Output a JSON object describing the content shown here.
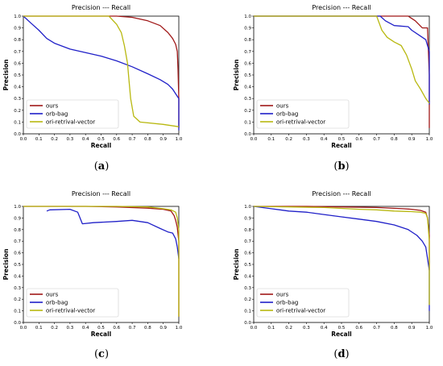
{
  "chart_data": [
    {
      "type": "line",
      "panel": "a",
      "title": "Precision --- Recall",
      "xlabel": "Recall",
      "ylabel": "Precision",
      "xlim": [
        0,
        1.0
      ],
      "ylim": [
        0,
        1.0
      ],
      "xticks": [
        "0.0",
        "0.1",
        "0.2",
        "0.3",
        "0.4",
        "0.5",
        "0.6",
        "0.7",
        "0.8",
        "0.9",
        "1.0"
      ],
      "yticks": [
        "0.0",
        "0.1",
        "0.2",
        "0.3",
        "0.4",
        "0.5",
        "0.6",
        "0.7",
        "0.8",
        "0.9",
        "1.0"
      ],
      "legend_position": "lower-left",
      "series": [
        {
          "name": "ours",
          "color": "#a01818",
          "points": [
            [
              0,
              1.0
            ],
            [
              0.5,
              1.0
            ],
            [
              0.6,
              1.0
            ],
            [
              0.7,
              0.99
            ],
            [
              0.8,
              0.96
            ],
            [
              0.88,
              0.92
            ],
            [
              0.93,
              0.86
            ],
            [
              0.96,
              0.81
            ],
            [
              0.98,
              0.76
            ],
            [
              0.99,
              0.7
            ],
            [
              0.995,
              0.55
            ],
            [
              1.0,
              0.3
            ],
            [
              1.0,
              0.05
            ]
          ]
        },
        {
          "name": "orb-bag",
          "color": "#2020c8",
          "points": [
            [
              0.0,
              1.0
            ],
            [
              0.05,
              0.94
            ],
            [
              0.1,
              0.88
            ],
            [
              0.15,
              0.81
            ],
            [
              0.2,
              0.77
            ],
            [
              0.3,
              0.72
            ],
            [
              0.4,
              0.69
            ],
            [
              0.5,
              0.66
            ],
            [
              0.6,
              0.62
            ],
            [
              0.7,
              0.57
            ],
            [
              0.8,
              0.51
            ],
            [
              0.88,
              0.46
            ],
            [
              0.93,
              0.42
            ],
            [
              0.96,
              0.38
            ],
            [
              0.98,
              0.34
            ],
            [
              1.0,
              0.3
            ],
            [
              1.0,
              0.03
            ]
          ]
        },
        {
          "name": "ori-retrival-vector",
          "color": "#b8b810",
          "points": [
            [
              0,
              1.0
            ],
            [
              0.55,
              1.0
            ],
            [
              0.6,
              0.93
            ],
            [
              0.63,
              0.86
            ],
            [
              0.65,
              0.75
            ],
            [
              0.67,
              0.6
            ],
            [
              0.68,
              0.45
            ],
            [
              0.69,
              0.3
            ],
            [
              0.71,
              0.15
            ],
            [
              0.75,
              0.1
            ],
            [
              0.9,
              0.08
            ],
            [
              1.0,
              0.06
            ]
          ]
        }
      ]
    },
    {
      "type": "line",
      "panel": "b",
      "title": "Precision --- Recall",
      "xlabel": "Recall",
      "ylabel": "Precision",
      "xlim": [
        0,
        1.0
      ],
      "ylim": [
        0,
        1.0
      ],
      "xticks": [
        "0.0",
        "0.1",
        "0.2",
        "0.3",
        "0.4",
        "0.5",
        "0.6",
        "0.7",
        "0.8",
        "0.9",
        "1.0"
      ],
      "yticks": [
        "0.0",
        "0.1",
        "0.2",
        "0.3",
        "0.4",
        "0.5",
        "0.6",
        "0.7",
        "0.8",
        "0.9",
        "1.0"
      ],
      "legend_position": "lower-left",
      "series": [
        {
          "name": "ours",
          "color": "#a01818",
          "points": [
            [
              0,
              1.0
            ],
            [
              0.7,
              1.0
            ],
            [
              0.88,
              1.0
            ],
            [
              0.92,
              0.96
            ],
            [
              0.96,
              0.9
            ],
            [
              0.99,
              0.9
            ],
            [
              1.0,
              0.5
            ],
            [
              1.0,
              0.05
            ]
          ]
        },
        {
          "name": "orb-bag",
          "color": "#2020c8",
          "points": [
            [
              0,
              1.0
            ],
            [
              0.72,
              1.0
            ],
            [
              0.75,
              0.96
            ],
            [
              0.8,
              0.92
            ],
            [
              0.88,
              0.91
            ],
            [
              0.9,
              0.88
            ],
            [
              0.95,
              0.83
            ],
            [
              0.98,
              0.8
            ],
            [
              1.0,
              0.7
            ],
            [
              1.0,
              0.25
            ]
          ]
        },
        {
          "name": "ori-retrival-vector",
          "color": "#b8b810",
          "points": [
            [
              0,
              1.0
            ],
            [
              0.7,
              1.0
            ],
            [
              0.73,
              0.88
            ],
            [
              0.76,
              0.82
            ],
            [
              0.8,
              0.78
            ],
            [
              0.84,
              0.75
            ],
            [
              0.87,
              0.67
            ],
            [
              0.9,
              0.55
            ],
            [
              0.92,
              0.45
            ],
            [
              0.95,
              0.38
            ],
            [
              0.98,
              0.3
            ],
            [
              1.0,
              0.26
            ]
          ]
        }
      ]
    },
    {
      "type": "line",
      "panel": "c",
      "title": "Precision --- Recall",
      "xlabel": "Recall",
      "ylabel": "Precision",
      "xlim": [
        0,
        1.0
      ],
      "ylim": [
        0,
        1.0
      ],
      "xticks": [
        "0.0",
        "0.1",
        "0.2",
        "0.3",
        "0.4",
        "0.5",
        "0.6",
        "0.7",
        "0.8",
        "0.9",
        "1.0"
      ],
      "yticks": [
        "0.0",
        "0.1",
        "0.2",
        "0.3",
        "0.4",
        "0.5",
        "0.6",
        "0.7",
        "0.8",
        "0.9",
        "1.0"
      ],
      "legend_position": "lower-left",
      "series": [
        {
          "name": "ours",
          "color": "#a01818",
          "points": [
            [
              0,
              1.0
            ],
            [
              0.4,
              1.0
            ],
            [
              0.6,
              0.995
            ],
            [
              0.8,
              0.985
            ],
            [
              0.9,
              0.975
            ],
            [
              0.95,
              0.96
            ],
            [
              0.97,
              0.92
            ],
            [
              0.98,
              0.88
            ],
            [
              0.99,
              0.82
            ],
            [
              1.0,
              0.7
            ],
            [
              1.0,
              0.05
            ]
          ]
        },
        {
          "name": "orb-bag",
          "color": "#2020c8",
          "points": [
            [
              0.15,
              0.96
            ],
            [
              0.17,
              0.97
            ],
            [
              0.3,
              0.975
            ],
            [
              0.35,
              0.95
            ],
            [
              0.38,
              0.85
            ],
            [
              0.45,
              0.86
            ],
            [
              0.6,
              0.87
            ],
            [
              0.7,
              0.88
            ],
            [
              0.8,
              0.86
            ],
            [
              0.88,
              0.81
            ],
            [
              0.93,
              0.78
            ],
            [
              0.96,
              0.77
            ],
            [
              0.98,
              0.72
            ],
            [
              0.99,
              0.65
            ],
            [
              1.0,
              0.55
            ]
          ]
        },
        {
          "name": "ori-retrival-vector",
          "color": "#b8b810",
          "points": [
            [
              0,
              1.0
            ],
            [
              0.6,
              1.0
            ],
            [
              0.8,
              0.995
            ],
            [
              0.9,
              0.98
            ],
            [
              0.95,
              0.97
            ],
            [
              0.98,
              0.95
            ],
            [
              0.99,
              0.9
            ],
            [
              1.0,
              0.8
            ],
            [
              1.0,
              0.05
            ]
          ]
        }
      ]
    },
    {
      "type": "line",
      "panel": "d",
      "title": "Precision --- Recall",
      "xlabel": "Recall",
      "ylabel": "Precision",
      "xlim": [
        0,
        1.0
      ],
      "ylim": [
        0,
        1.0
      ],
      "xticks": [
        "0.0",
        "0.1",
        "0.2",
        "0.3",
        "0.4",
        "0.5",
        "0.6",
        "0.7",
        "0.8",
        "0.9",
        "1.0"
      ],
      "yticks": [
        "0.0",
        "0.1",
        "0.2",
        "0.3",
        "0.4",
        "0.5",
        "0.6",
        "0.7",
        "0.8",
        "0.9",
        "1.0"
      ],
      "legend_position": "lower-left",
      "series": [
        {
          "name": "ours",
          "color": "#a01818",
          "points": [
            [
              0,
              1.0
            ],
            [
              0.3,
              1.0
            ],
            [
              0.5,
              0.995
            ],
            [
              0.7,
              0.99
            ],
            [
              0.85,
              0.98
            ],
            [
              0.9,
              0.975
            ],
            [
              0.95,
              0.965
            ],
            [
              0.98,
              0.95
            ],
            [
              0.99,
              0.9
            ],
            [
              1.0,
              0.75
            ],
            [
              1.0,
              0.45
            ]
          ]
        },
        {
          "name": "orb-bag",
          "color": "#2020c8",
          "points": [
            [
              0.0,
              1.0
            ],
            [
              0.1,
              0.98
            ],
            [
              0.15,
              0.97
            ],
            [
              0.2,
              0.96
            ],
            [
              0.3,
              0.95
            ],
            [
              0.4,
              0.93
            ],
            [
              0.5,
              0.91
            ],
            [
              0.6,
              0.89
            ],
            [
              0.7,
              0.87
            ],
            [
              0.8,
              0.84
            ],
            [
              0.88,
              0.8
            ],
            [
              0.93,
              0.75
            ],
            [
              0.96,
              0.7
            ],
            [
              0.98,
              0.65
            ],
            [
              0.99,
              0.55
            ],
            [
              1.0,
              0.45
            ],
            [
              1.0,
              0.1
            ]
          ]
        },
        {
          "name": "ori-retrival-vector",
          "color": "#b8b810",
          "points": [
            [
              0,
              1.0
            ],
            [
              0.4,
              0.99
            ],
            [
              0.6,
              0.975
            ],
            [
              0.7,
              0.97
            ],
            [
              0.8,
              0.96
            ],
            [
              0.9,
              0.955
            ],
            [
              0.95,
              0.95
            ],
            [
              0.98,
              0.94
            ],
            [
              0.99,
              0.9
            ],
            [
              1.0,
              0.7
            ],
            [
              1.0,
              0.15
            ]
          ]
        }
      ]
    }
  ]
}
